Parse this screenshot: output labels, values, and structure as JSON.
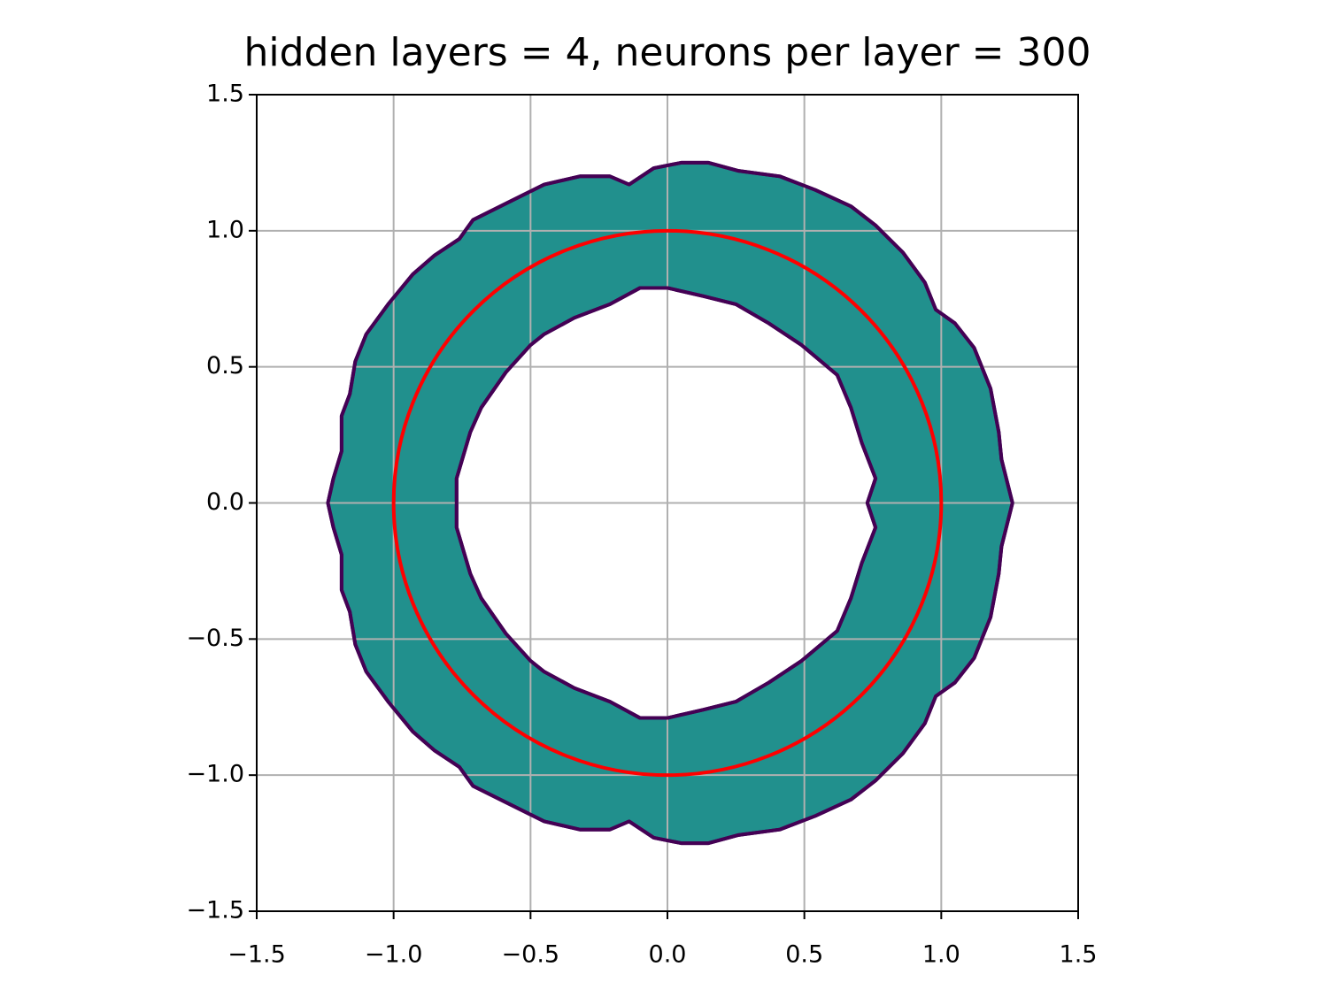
{
  "chart_data": {
    "type": "contour",
    "title": "hidden layers = 4, neurons per layer = 300",
    "xlim": [
      -1.5,
      1.5
    ],
    "ylim": [
      -1.5,
      1.5
    ],
    "xticks": [
      {
        "value": -1.5,
        "label": "−1.5"
      },
      {
        "value": -1.0,
        "label": "−1.0"
      },
      {
        "value": -0.5,
        "label": "−0.5"
      },
      {
        "value": 0,
        "label": "0.0"
      },
      0.5,
      {
        "value": 1.0,
        "label": "1.0"
      },
      1.5
    ],
    "yticks": [
      {
        "value": -1.5,
        "label": "−1.5"
      },
      {
        "value": -1.0,
        "label": "−1.0"
      },
      {
        "value": -0.5,
        "label": "−0.5"
      },
      {
        "value": 0,
        "label": "0.0"
      },
      0.5,
      {
        "value": 1.0,
        "label": "1.0"
      },
      1.5
    ],
    "grid": true,
    "fill_color": "#21908d",
    "edge_color": "#440154",
    "regions": [
      {
        "x": [
          1.26,
          1.24,
          1.22,
          1.21,
          1.18,
          1.12,
          1.05,
          0.98,
          0.94,
          0.86,
          0.76,
          0.67,
          0.54,
          0.41,
          0.26,
          0.15,
          0.05,
          -0.05,
          -0.14,
          -0.21,
          -0.32,
          -0.45,
          -0.59,
          -0.71,
          -0.76,
          -0.85,
          -0.93,
          -1.02,
          -1.1,
          -1.14,
          -1.16,
          -1.19,
          -1.19,
          -1.22,
          -1.24,
          -1.22,
          -1.19,
          -1.19,
          -1.16,
          -1.14,
          -1.1,
          -1.02,
          -0.93,
          -0.85,
          -0.76,
          -0.71,
          -0.59,
          -0.45,
          -0.32,
          -0.21,
          -0.14,
          -0.05,
          0.05,
          0.15,
          0.26,
          0.41,
          0.54,
          0.67,
          0.76,
          0.86,
          0.94,
          0.98,
          1.05,
          1.12,
          1.18,
          1.21,
          1.22,
          1.24
        ],
        "y": [
          0,
          0.08,
          0.16,
          0.26,
          0.42,
          0.57,
          0.66,
          0.71,
          0.81,
          0.92,
          1.02,
          1.09,
          1.15,
          1.2,
          1.22,
          1.25,
          1.25,
          1.23,
          1.17,
          1.2,
          1.2,
          1.17,
          1.1,
          1.04,
          0.97,
          0.91,
          0.84,
          0.73,
          0.62,
          0.52,
          0.4,
          0.32,
          0.19,
          0.09,
          0,
          -0.09,
          -0.19,
          -0.32,
          -0.4,
          -0.52,
          -0.62,
          -0.73,
          -0.84,
          -0.91,
          -0.97,
          -1.04,
          -1.1,
          -1.17,
          -1.2,
          -1.2,
          -1.17,
          -1.23,
          -1.25,
          -1.25,
          -1.22,
          -1.2,
          -1.15,
          -1.09,
          -1.02,
          -0.92,
          -0.81,
          -0.71,
          -0.66,
          -0.57,
          -0.42,
          -0.26,
          -0.16,
          -0.08
        ]
      },
      {
        "x": [
          0.73,
          0.76,
          0.71,
          0.67,
          0.62,
          0.49,
          0.37,
          0.25,
          0.13,
          0.0,
          -0.1,
          -0.21,
          -0.34,
          -0.45,
          -0.5,
          -0.59,
          -0.68,
          -0.72,
          -0.77,
          -0.77,
          -0.77,
          -0.72,
          -0.68,
          -0.59,
          -0.5,
          -0.45,
          -0.34,
          -0.21,
          -0.1,
          0.0,
          0.13,
          0.25,
          0.37,
          0.49,
          0.62,
          0.67,
          0.71,
          0.76
        ],
        "y": [
          0,
          0.09,
          0.22,
          0.35,
          0.47,
          0.58,
          0.66,
          0.73,
          0.76,
          0.79,
          0.79,
          0.73,
          0.68,
          0.62,
          0.58,
          0.48,
          0.35,
          0.26,
          0.09,
          0,
          -0.09,
          -0.26,
          -0.35,
          -0.48,
          -0.58,
          -0.62,
          -0.68,
          -0.73,
          -0.79,
          -0.79,
          -0.76,
          -0.73,
          -0.66,
          -0.58,
          -0.47,
          -0.35,
          -0.22,
          -0.09
        ]
      }
    ],
    "circle": {
      "center": [
        0,
        0
      ],
      "radius": 1,
      "color": "#ff0000"
    }
  }
}
